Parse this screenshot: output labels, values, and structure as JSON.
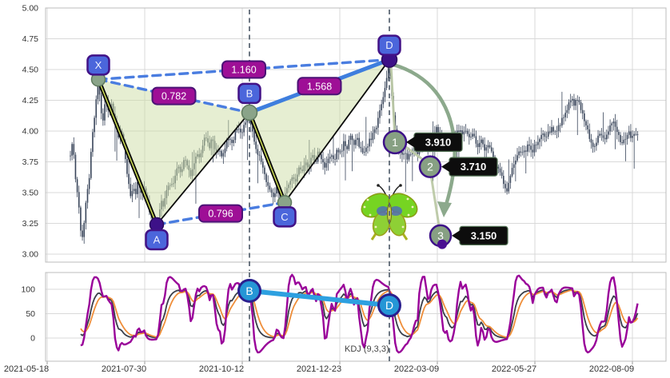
{
  "chart_data": {
    "type": "candlestick",
    "panels": [
      "price",
      "indicator"
    ],
    "x_ticks": [
      "2021-05-18",
      "2021-07-30",
      "2021-10-12",
      "2021-12-23",
      "2022-03-09",
      "2022-05-27",
      "2022-08-09"
    ],
    "price_axis_ticks": [
      "5.00",
      "4.75",
      "4.50",
      "4.25",
      "4.00",
      "3.75",
      "3.50",
      "3.25",
      "3.00"
    ],
    "indicator_axis_ticks": [
      "100",
      "50",
      "0"
    ],
    "indicator_label": "KDJ (9,3,3)",
    "price_path": [
      [
        88,
        3.8
      ],
      [
        91,
        3.93
      ],
      [
        94,
        3.65
      ],
      [
        98,
        3.42
      ],
      [
        102,
        3.12
      ],
      [
        105,
        3.22
      ],
      [
        108,
        3.5
      ],
      [
        111,
        3.58
      ],
      [
        114,
        3.85
      ],
      [
        117,
        4.05
      ],
      [
        120,
        4.25
      ],
      [
        123,
        4.42
      ],
      [
        126,
        4.18
      ],
      [
        129,
        4.1
      ],
      [
        132,
        4.27
      ],
      [
        136,
        4.17
      ],
      [
        140,
        4.22
      ],
      [
        144,
        4.06
      ],
      [
        148,
        3.96
      ],
      [
        152,
        4.02
      ],
      [
        156,
        3.82
      ],
      [
        160,
        3.6
      ],
      [
        164,
        3.46
      ],
      [
        167,
        3.56
      ],
      [
        170,
        3.5
      ],
      [
        173,
        3.62
      ],
      [
        176,
        3.48
      ],
      [
        180,
        3.55
      ],
      [
        184,
        3.42
      ],
      [
        187,
        3.36
      ],
      [
        190,
        3.3
      ],
      [
        193,
        3.26
      ],
      [
        196,
        3.22
      ],
      [
        199,
        3.34
      ],
      [
        202,
        3.44
      ],
      [
        205,
        3.39
      ],
      [
        208,
        3.5
      ],
      [
        211,
        3.58
      ],
      [
        214,
        3.53
      ],
      [
        218,
        3.62
      ],
      [
        222,
        3.71
      ],
      [
        226,
        3.66
      ],
      [
        230,
        3.77
      ],
      [
        234,
        3.72
      ],
      [
        238,
        3.64
      ],
      [
        242,
        3.74
      ],
      [
        246,
        3.84
      ],
      [
        250,
        3.78
      ],
      [
        254,
        3.9
      ],
      [
        258,
        3.96
      ],
      [
        262,
        3.88
      ],
      [
        266,
        3.94
      ],
      [
        270,
        3.82
      ],
      [
        274,
        3.87
      ],
      [
        278,
        3.79
      ],
      [
        282,
        3.88
      ],
      [
        286,
        3.96
      ],
      [
        290,
        3.9
      ],
      [
        294,
        3.98
      ],
      [
        298,
        4.03
      ],
      [
        302,
        3.99
      ],
      [
        306,
        4.07
      ],
      [
        309,
        4.11
      ],
      [
        312,
        4.14
      ],
      [
        315,
        4.02
      ],
      [
        318,
        3.92
      ],
      [
        322,
        3.83
      ],
      [
        326,
        3.76
      ],
      [
        330,
        3.68
      ],
      [
        334,
        3.58
      ],
      [
        338,
        3.52
      ],
      [
        342,
        3.46
      ],
      [
        346,
        3.54
      ],
      [
        350,
        3.47
      ],
      [
        354,
        3.41
      ],
      [
        358,
        3.52
      ],
      [
        362,
        3.58
      ],
      [
        366,
        3.64
      ],
      [
        370,
        3.6
      ],
      [
        374,
        3.7
      ],
      [
        378,
        3.66
      ],
      [
        382,
        3.76
      ],
      [
        386,
        3.7
      ],
      [
        390,
        3.8
      ],
      [
        394,
        3.74
      ],
      [
        398,
        3.83
      ],
      [
        402,
        3.76
      ],
      [
        406,
        3.7
      ],
      [
        410,
        3.76
      ],
      [
        414,
        3.81
      ],
      [
        418,
        3.76
      ],
      [
        422,
        3.86
      ],
      [
        426,
        3.81
      ],
      [
        430,
        3.91
      ],
      [
        434,
        3.86
      ],
      [
        438,
        3.95
      ],
      [
        442,
        3.89
      ],
      [
        446,
        3.94
      ],
      [
        450,
        3.87
      ],
      [
        454,
        3.82
      ],
      [
        458,
        3.86
      ],
      [
        462,
        3.92
      ],
      [
        466,
        3.97
      ],
      [
        470,
        4.03
      ],
      [
        474,
        4.12
      ],
      [
        478,
        4.24
      ],
      [
        482,
        4.38
      ],
      [
        486,
        4.55
      ],
      [
        489,
        4.38
      ],
      [
        492,
        4.15
      ],
      [
        495,
        3.98
      ],
      [
        498,
        3.88
      ],
      [
        502,
        3.8
      ],
      [
        506,
        3.85
      ],
      [
        510,
        3.78
      ],
      [
        514,
        3.83
      ],
      [
        518,
        3.88
      ],
      [
        522,
        3.82
      ],
      [
        526,
        3.87
      ],
      [
        530,
        3.92
      ],
      [
        534,
        3.86
      ],
      [
        538,
        3.92
      ],
      [
        542,
        3.97
      ],
      [
        546,
        4.02
      ],
      [
        550,
        3.96
      ],
      [
        554,
        3.9
      ],
      [
        558,
        3.94
      ],
      [
        562,
        3.88
      ],
      [
        566,
        3.92
      ],
      [
        570,
        3.97
      ],
      [
        574,
        4.01
      ],
      [
        578,
        3.96
      ],
      [
        582,
        4.0
      ],
      [
        586,
        3.94
      ],
      [
        590,
        3.99
      ],
      [
        594,
        3.93
      ],
      [
        598,
        3.88
      ],
      [
        602,
        3.92
      ],
      [
        606,
        3.86
      ],
      [
        610,
        3.9
      ],
      [
        614,
        3.84
      ],
      [
        618,
        3.78
      ],
      [
        622,
        3.7
      ],
      [
        626,
        3.64
      ],
      [
        630,
        3.58
      ],
      [
        634,
        3.52
      ],
      [
        638,
        3.62
      ],
      [
        642,
        3.72
      ],
      [
        646,
        3.8
      ],
      [
        650,
        3.86
      ],
      [
        654,
        3.8
      ],
      [
        658,
        3.85
      ],
      [
        662,
        3.9
      ],
      [
        666,
        3.84
      ],
      [
        670,
        3.89
      ],
      [
        674,
        3.94
      ],
      [
        678,
        3.99
      ],
      [
        682,
        3.93
      ],
      [
        686,
        3.98
      ],
      [
        690,
        4.03
      ],
      [
        694,
        3.97
      ],
      [
        698,
        4.02
      ],
      [
        702,
        4.08
      ],
      [
        706,
        4.14
      ],
      [
        710,
        4.2
      ],
      [
        714,
        4.26
      ],
      [
        718,
        4.22
      ],
      [
        722,
        4.27
      ],
      [
        726,
        4.18
      ],
      [
        730,
        4.1
      ],
      [
        734,
        4.02
      ],
      [
        738,
        3.94
      ],
      [
        742,
        3.88
      ],
      [
        746,
        3.92
      ],
      [
        750,
        3.98
      ],
      [
        754,
        3.92
      ],
      [
        758,
        3.97
      ],
      [
        762,
        4.03
      ],
      [
        766,
        4.08
      ],
      [
        770,
        4.02
      ],
      [
        774,
        3.96
      ],
      [
        778,
        3.9
      ],
      [
        782,
        3.95
      ],
      [
        786,
        3.99
      ],
      [
        790,
        3.93
      ],
      [
        794,
        3.97
      ],
      [
        798,
        3.95
      ]
    ],
    "pattern": {
      "name": "harmonic-butterfly",
      "points": [
        {
          "label": "X",
          "x": 123,
          "price": 4.42,
          "node": "green",
          "badge": "above",
          "badge_dy": -18
        },
        {
          "label": "A",
          "x": 196,
          "price": 3.24,
          "node": "purple",
          "badge": "below",
          "badge_dy": 19
        },
        {
          "label": "B",
          "x": 312,
          "price": 4.15,
          "node": "green",
          "badge": "above",
          "badge_dy": -24
        },
        {
          "label": "C",
          "x": 356,
          "price": 3.42,
          "node": "green",
          "badge": "below",
          "badge_dy": 18
        },
        {
          "label": "D",
          "x": 487,
          "price": 4.58,
          "node": "purple",
          "badge": "above",
          "badge_dy": -18
        }
      ],
      "legs": [
        [
          "X",
          "A",
          "thick"
        ],
        [
          "A",
          "B",
          "thin"
        ],
        [
          "B",
          "C",
          "thick"
        ],
        [
          "C",
          "D",
          "thin"
        ]
      ],
      "fill_triangles": [
        [
          "X",
          "A",
          "B"
        ],
        [
          "B",
          "C",
          "D"
        ]
      ],
      "ratios": [
        {
          "text": "0.782",
          "from": "X",
          "to": "B",
          "style": "dashed"
        },
        {
          "text": "1.160",
          "from": "X",
          "to": "D",
          "style": "dashed"
        },
        {
          "text": "1.568",
          "from": "B",
          "to": "D",
          "style": "solid"
        },
        {
          "text": "0.796",
          "from": "A",
          "to": "C",
          "style": "dashed"
        }
      ],
      "guide_lines_at": [
        "B",
        "D"
      ]
    },
    "targets": [
      {
        "num": "1",
        "x": 494,
        "price": 3.91,
        "label": "3.910"
      },
      {
        "num": "2",
        "x": 538,
        "price": 3.71,
        "label": "3.710"
      },
      {
        "num": "3",
        "x": 551,
        "price": 3.15,
        "label": "3.150"
      }
    ],
    "end_dot": {
      "x": 553,
      "price": 3.08
    },
    "indicator_markers": {
      "connected": true,
      "points": [
        {
          "label": "B",
          "x": 312,
          "value": 97
        },
        {
          "label": "D",
          "x": 487,
          "value": 67
        }
      ]
    }
  },
  "style": {
    "candle": "#39455a",
    "grid": "#d9d9d9",
    "border": "#bdbdbd",
    "axis_text": "#333333",
    "dashed_blue": "#4a7de0",
    "solid_blue": "#3e7ede",
    "marker_blue": "#2596d6",
    "marker_blue_border": "#2b1f8e",
    "badge_fill": "#4b66db",
    "badge_border": "#421287",
    "ratio_fill": "#9e0f96",
    "ratio_border": "#4b1276",
    "node_green": "#8aa489",
    "node_green_border": "#5f7a5e",
    "node_purple": "#3d1188",
    "target_circle": "#87a083",
    "target_circle_border": "#3d1188",
    "tag_bg": "#0d0d0d",
    "tag_border": "#4e6e50",
    "tag_text": "#ffffff",
    "arc_green": "#8ca98c",
    "pale_green": "#bcc9a6",
    "leg_black": "#0a0a0a",
    "leg_core": "#cddd55",
    "fill_green": "rgba(205,222,165,0.5)",
    "guide_dash": "#55616e",
    "kdj_k": "#3a3f4a",
    "kdj_d": "#ef8e3a",
    "kdj_j": "#990099"
  }
}
